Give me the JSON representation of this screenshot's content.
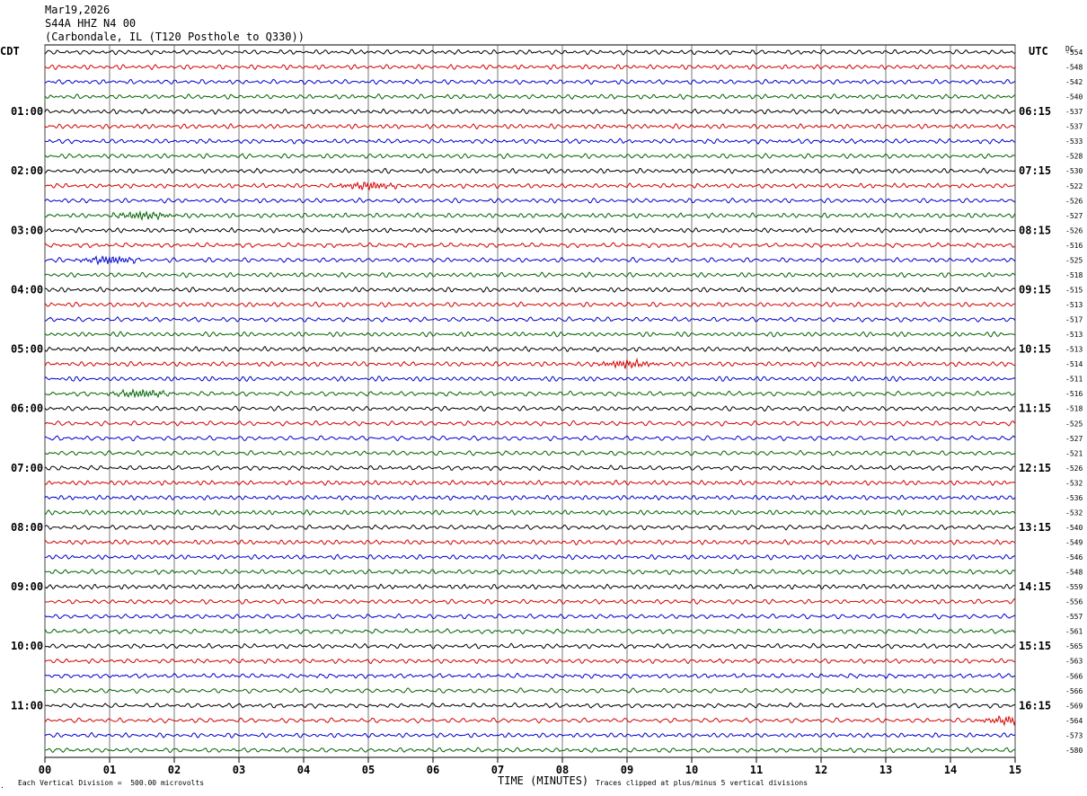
{
  "header": {
    "date": "Mar19,2026",
    "station": "S44A HHZ N4 00",
    "location": "(Carbondale, IL (T120 Posthole to Q330))"
  },
  "left_tz": "CDT",
  "right_tz": "UTC",
  "dc_label": "DC",
  "footer": {
    "scale": "Each Vertical Division =  500.00 microvolts",
    "xlabel": "TIME (MINUTES)",
    "clip": "Traces clipped at plus/minus 5 vertical divisions"
  },
  "colors": {
    "trace": [
      "#000000",
      "#d40000",
      "#0000d0",
      "#006400"
    ],
    "grid": "#000000"
  },
  "chart_data": {
    "type": "line",
    "title": "S44A HHZ N4 00",
    "xlabel": "TIME (MINUTES)",
    "xlim": [
      0,
      15
    ],
    "x_ticks": [
      "00",
      "01",
      "02",
      "03",
      "04",
      "05",
      "06",
      "07",
      "08",
      "09",
      "10",
      "11",
      "12",
      "13",
      "14",
      "15"
    ],
    "left_hour_labels": [
      "01:00",
      "02:00",
      "03:00",
      "04:00",
      "05:00",
      "06:00",
      "07:00",
      "08:00",
      "09:00",
      "10:00",
      "11:00"
    ],
    "right_hour_labels": [
      "06:15",
      "07:15",
      "08:15",
      "09:15",
      "10:15",
      "11:15",
      "12:15",
      "13:15",
      "14:15",
      "15:15",
      "16:15"
    ],
    "trace_count": 48,
    "dc_offsets": [
      "-554",
      "-548",
      "-542",
      "-540",
      "-537",
      "-537",
      "-533",
      "-528",
      "-530",
      "-522",
      "-526",
      "-527",
      "-526",
      "-516",
      "-525",
      "-518",
      "-515",
      "-513",
      "-517",
      "-513",
      "-513",
      "-514",
      "-511",
      "-516",
      "-518",
      "-525",
      "-527",
      "-521",
      "-526",
      "-532",
      "-536",
      "-532",
      "-540",
      "-549",
      "-546",
      "-548",
      "-559",
      "-556",
      "-557",
      "-561",
      "-565",
      "-563",
      "-566",
      "-566",
      "-569",
      "-564",
      "-573",
      "-580"
    ],
    "events": [
      {
        "trace": 9,
        "minute": 5.0,
        "label": ""
      },
      {
        "trace": 11,
        "minute": 1.5,
        "label": ""
      },
      {
        "trace": 14,
        "minute": 1.0,
        "label": ""
      },
      {
        "trace": 21,
        "minute": 9.0,
        "label": ""
      },
      {
        "trace": 23,
        "minute": 1.5,
        "label": ""
      },
      {
        "trace": 45,
        "minute": 14.9,
        "label": ""
      }
    ]
  }
}
